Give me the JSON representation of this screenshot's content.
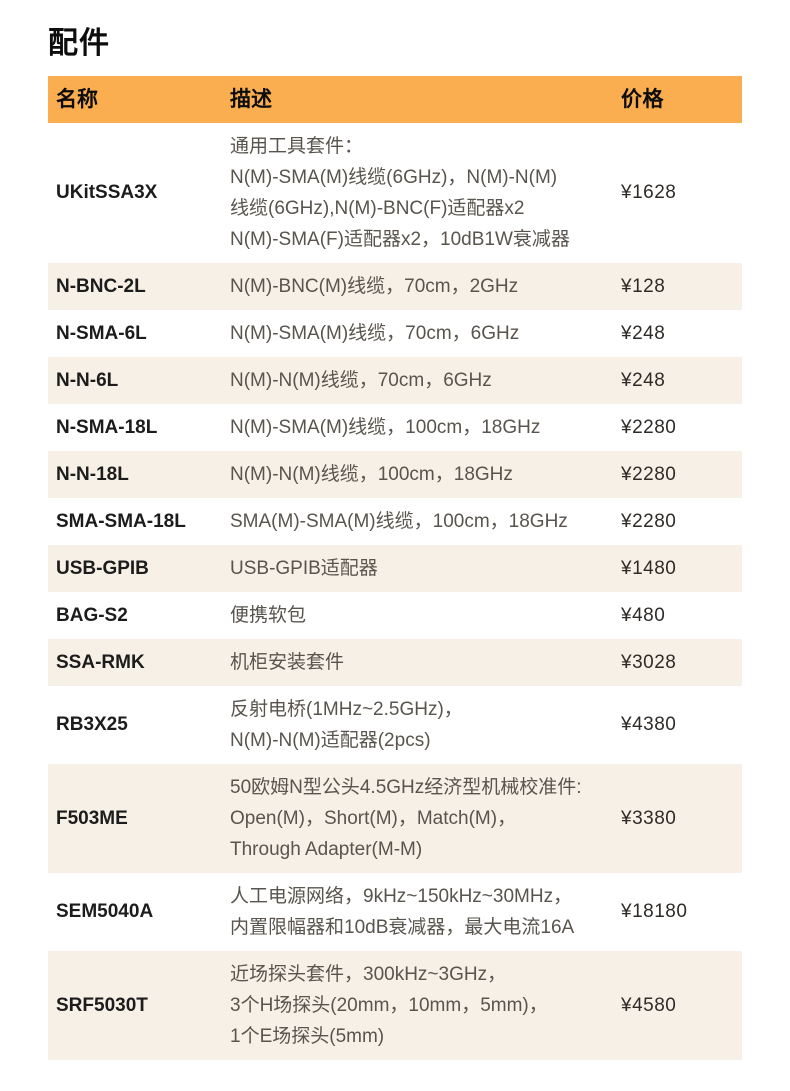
{
  "page": {
    "title": "配件"
  },
  "table": {
    "accent_color": "#FAAE4F",
    "stripe_color": "#F7F0E6",
    "headers": {
      "name": "名称",
      "desc": "描述",
      "price": "价格"
    },
    "rows": [
      {
        "name": "UKitSSA3X",
        "desc": "通用工具套件：\nN(M)-SMA(M)线缆(6GHz)，N(M)-N(M)\n线缆(6GHz),N(M)-BNC(F)适配器x2\nN(M)-SMA(F)适配器x2，10dB1W衰减器",
        "price": "¥1628"
      },
      {
        "name": "N-BNC-2L",
        "desc": "N(M)-BNC(M)线缆，70cm，2GHz",
        "price": "¥128"
      },
      {
        "name": "N-SMA-6L",
        "desc": "N(M)-SMA(M)线缆，70cm，6GHz",
        "price": "¥248"
      },
      {
        "name": "N-N-6L",
        "desc": "N(M)-N(M)线缆，70cm，6GHz",
        "price": "¥248"
      },
      {
        "name": "N-SMA-18L",
        "desc": "N(M)-SMA(M)线缆，100cm，18GHz",
        "price": "¥2280"
      },
      {
        "name": "N-N-18L",
        "desc": "N(M)-N(M)线缆，100cm，18GHz",
        "price": "¥2280"
      },
      {
        "name": "SMA-SMA-18L",
        "desc": "SMA(M)-SMA(M)线缆，100cm，18GHz",
        "price": "¥2280"
      },
      {
        "name": "USB-GPIB",
        "desc": "USB-GPIB适配器",
        "price": "¥1480"
      },
      {
        "name": "BAG-S2",
        "desc": "便携软包",
        "price": "¥480"
      },
      {
        "name": "SSA-RMK",
        "desc": "机柜安装套件",
        "price": "¥3028"
      },
      {
        "name": "RB3X25",
        "desc": "反射电桥(1MHz~2.5GHz)，\nN(M)-N(M)适配器(2pcs)",
        "price": "¥4380"
      },
      {
        "name": "F503ME",
        "desc": "50欧姆N型公头4.5GHz经济型机械校准件:\nOpen(M)，Short(M)，Match(M)，\nThrough Adapter(M-M)",
        "price": "¥3380"
      },
      {
        "name": "SEM5040A",
        "desc": "人工电源网络，9kHz~150kHz~30MHz，\n内置限幅器和10dB衰减器，最大电流16A",
        "price": "¥18180"
      },
      {
        "name": "SRF5030T",
        "desc": "近场探头套件，300kHz~3GHz，\n3个H场探头(20mm，10mm，5mm)，\n1个E场探头(5mm)",
        "price": "¥4580"
      }
    ]
  }
}
